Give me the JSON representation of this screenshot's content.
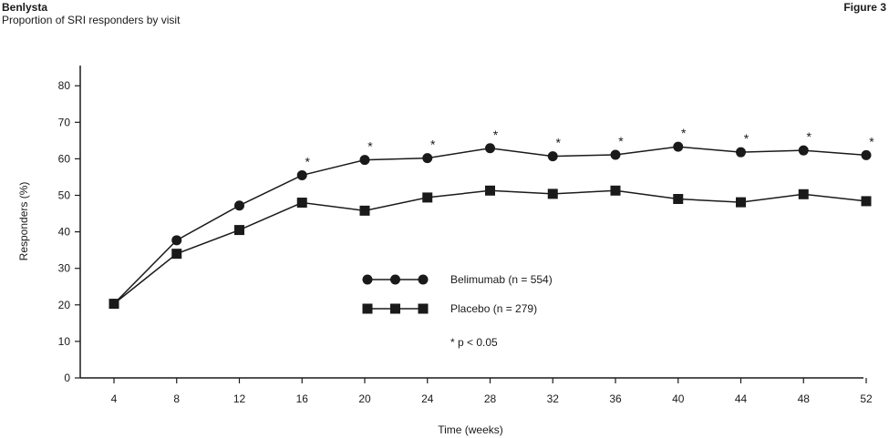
{
  "header": {
    "brand": "Benlysta",
    "subtitle": "Proportion of SRI responders by visit",
    "figure_label": "Figure 3"
  },
  "chart_data": {
    "type": "line",
    "title": "Proportion of SRI responders by visit",
    "xlabel": "Time (weeks)",
    "ylabel": "Responders (%)",
    "x": [
      4,
      8,
      12,
      16,
      20,
      24,
      28,
      32,
      36,
      40,
      44,
      48,
      52
    ],
    "xticks": [
      "4",
      "8",
      "12",
      "16",
      "20",
      "24",
      "28",
      "32",
      "36",
      "40",
      "44",
      "48",
      "52"
    ],
    "yticks": [
      "0",
      "10",
      "20",
      "30",
      "40",
      "50",
      "60",
      "70",
      "80"
    ],
    "ylim": [
      0,
      85
    ],
    "xlim": [
      0,
      52
    ],
    "grid": false,
    "series": [
      {
        "name": "Belimumab (n = 554)",
        "marker": "circle",
        "values": [
          20.3,
          37.7,
          47.2,
          55.5,
          59.7,
          60.2,
          62.9,
          60.7,
          61.1,
          63.3,
          61.8,
          62.3,
          61.0
        ],
        "significant": [
          false,
          false,
          false,
          true,
          true,
          true,
          true,
          true,
          true,
          true,
          true,
          true,
          true
        ]
      },
      {
        "name": "Placebo (n = 279)",
        "marker": "square",
        "values": [
          20.3,
          34.0,
          40.5,
          48.0,
          45.8,
          49.4,
          51.3,
          50.4,
          51.3,
          49.0,
          48.1,
          50.3,
          48.4
        ]
      }
    ],
    "annotation": "* p < 0.05",
    "significance_marker": "*"
  },
  "colors": {
    "ink": "#1a1a1a",
    "background": "#ffffff"
  }
}
